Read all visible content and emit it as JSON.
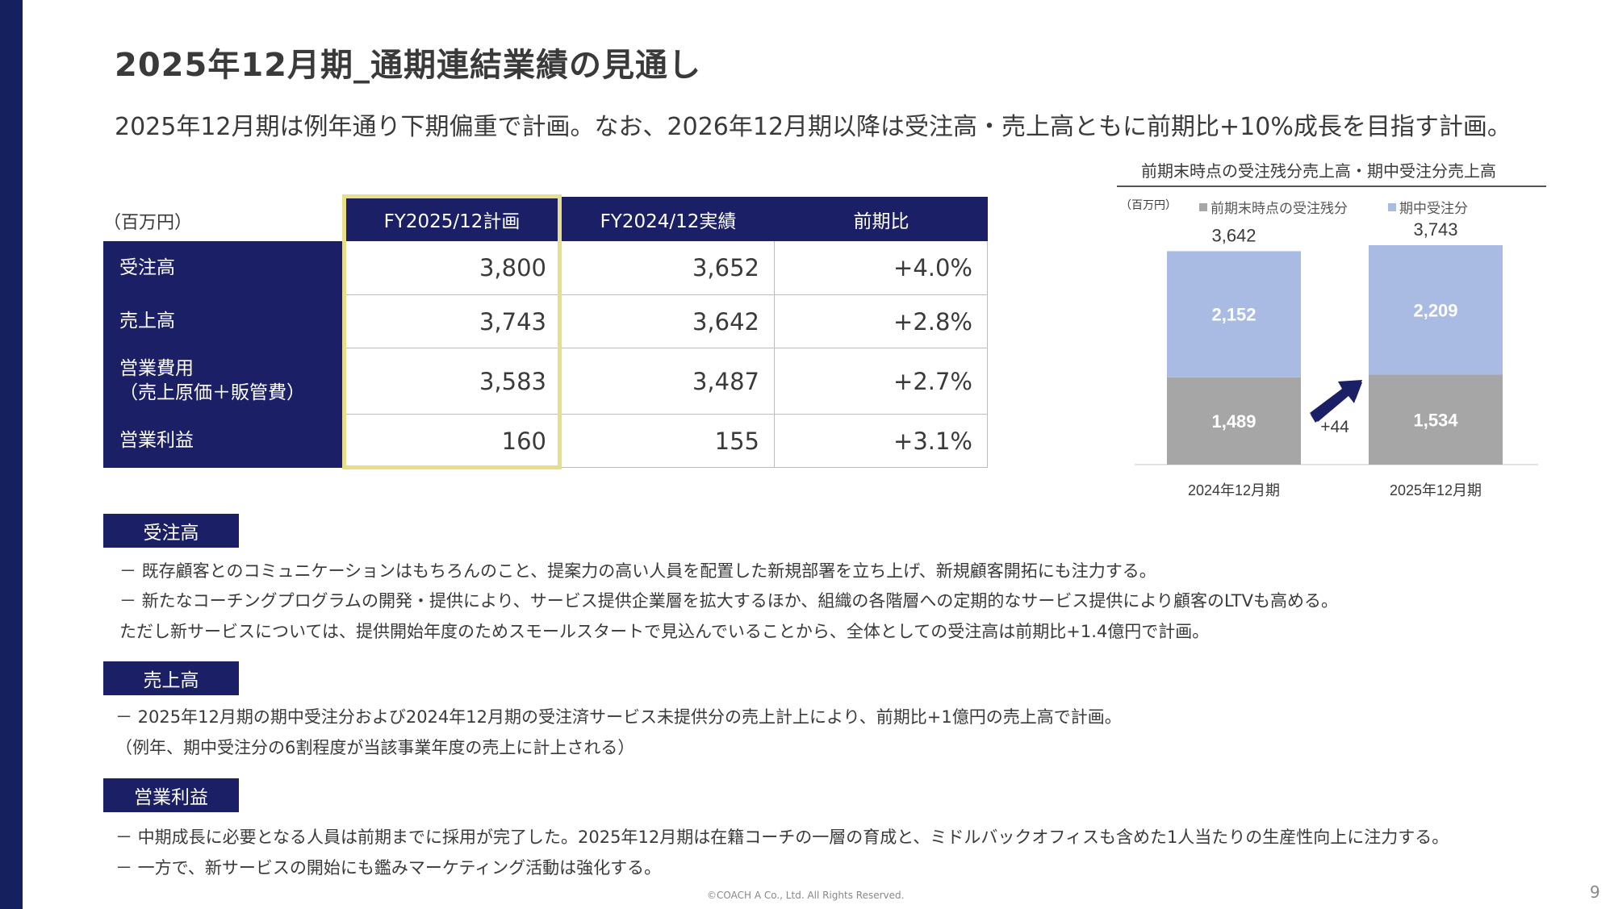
{
  "title": "2025年12月期_通期連結業績の見通し",
  "subtitle": "2025年12月期は例年通り下期偏重で計画。なお、2026年12月期以降は受注高・売上高ともに前期比+10%成長を目指す計画。",
  "table": {
    "unit": "（百万円）",
    "headers": [
      "FY2025/12計画",
      "FY2024/12実績",
      "前期比"
    ],
    "rows": [
      {
        "label": "受注高",
        "label2": "",
        "plan": "3,800",
        "actual": "3,652",
        "yoy": "+4.0%"
      },
      {
        "label": "売上高",
        "label2": "",
        "plan": "3,743",
        "actual": "3,642",
        "yoy": "+2.8%"
      },
      {
        "label": "営業費用",
        "label2": "（売上原価＋販管費）",
        "plan": "3,583",
        "actual": "3,487",
        "yoy": "+2.7%"
      },
      {
        "label": "営業利益",
        "label2": "",
        "plan": "160",
        "actual": "155",
        "yoy": "+3.1%"
      }
    ]
  },
  "chart_data": {
    "type": "bar",
    "stacked": true,
    "title": "前期末時点の受注残分売上高・期中受注分売上高",
    "unit": "（百万円）",
    "categories": [
      "2024年12月期",
      "2025年12月期"
    ],
    "series": [
      {
        "name": "前期末時点の受注残分",
        "values": [
          1489,
          1534
        ],
        "color": "#a6a6a6"
      },
      {
        "name": "期中受注分",
        "values": [
          2152,
          2209
        ],
        "color": "#a9bbe3"
      }
    ],
    "value_labels": {
      "bottom": [
        "1,489",
        "1,534"
      ],
      "top": [
        "2,152",
        "2,209"
      ],
      "totals": [
        "3,642",
        "3,743"
      ]
    },
    "annotation": "+44"
  },
  "sections": [
    {
      "badge": "受注高",
      "lines": [
        "－  既存顧客とのコミュニケーションはもちろんのこと、提案力の高い人員を配置した新規部署を立ち上げ、新規顧客開拓にも注力する。",
        "－  新たなコーチングプログラムの開発・提供により、サービス提供企業層を拡大するほか、組織の各階層への定期的なサービス提供により顧客のLTVも高める。",
        "     ただし新サービスについては、提供開始年度のためスモールスタートで見込んでいることから、全体としての受注高は前期比+1.4億円で計画。"
      ]
    },
    {
      "badge": "売上高",
      "lines": [
        "－ 2025年12月期の期中受注分および2024年12月期の受注済サービス未提供分の売上計上により、前期比+1億円の売上高で計画。",
        "    （例年、期中受注分の6割程度が当該事業年度の売上に計上される）"
      ]
    },
    {
      "badge": "営業利益",
      "lines": [
        "－   中期成長に必要となる人員は前期までに採用が完了した。2025年12月期は在籍コーチの一層の育成と、ミドルバックオフィスも含めた1人当たりの生産性向上に注力する。",
        "－   一方で、新サービスの開始にも鑑みマーケティング活動は強化する。"
      ]
    }
  ],
  "footer": "©COACH A Co., Ltd. All Rights Reserved.",
  "page_number": "9"
}
